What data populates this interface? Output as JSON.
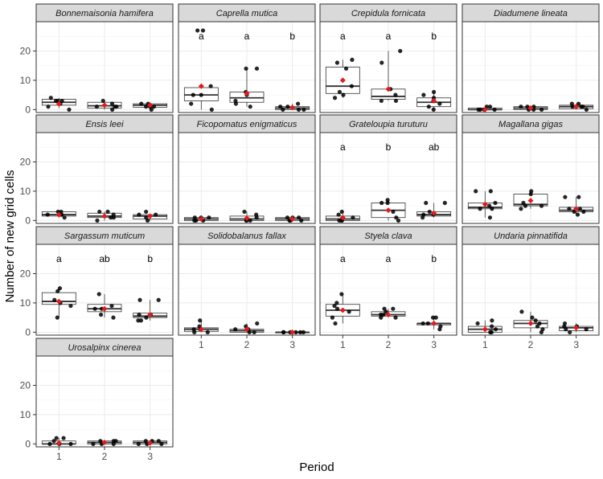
{
  "chart_data": {
    "type": "faceted-boxplot",
    "xlabel": "Period",
    "ylabel": "Number of new grid cells",
    "x_categories": [
      "1",
      "2",
      "3"
    ],
    "ylim": [
      -1,
      30
    ],
    "y_ticks": [
      0,
      10,
      20
    ],
    "colors": {
      "points": "#000000",
      "mean_marker": "#e41a1c",
      "strip_bg": "#d9d9d9",
      "box_fill": "#ffffff"
    },
    "panels": [
      {
        "species": "Bonnemaisonia hamifera",
        "letters": [],
        "groups": [
          {
            "period": "1",
            "box": [
              0.5,
              1.5,
              2.5,
              3.5,
              4
            ],
            "mean": 2,
            "points": [
              0,
              1,
              2,
              3,
              3,
              3,
              4
            ]
          },
          {
            "period": "2",
            "box": [
              0,
              0.5,
              1.3,
              2.5,
              3
            ],
            "mean": 1.5,
            "points": [
              0,
              1,
              1,
              2,
              3,
              1
            ]
          },
          {
            "period": "3",
            "box": [
              0,
              0.8,
              1.5,
              2,
              2
            ],
            "mean": 1.5,
            "points": [
              0,
              1,
              2,
              2,
              1,
              1
            ]
          }
        ]
      },
      {
        "species": "Caprella mutica",
        "letters": [
          "a",
          "a",
          "b"
        ],
        "groups": [
          {
            "period": "1",
            "box": [
              0,
              3,
              5,
              7.5,
              8
            ],
            "mean": 8,
            "points": [
              0,
              2,
              5,
              5,
              8,
              27,
              27
            ]
          },
          {
            "period": "2",
            "box": [
              1,
              2.5,
              4,
              6,
              14
            ],
            "mean": 5.5,
            "points": [
              1,
              2,
              3,
              5,
              6,
              14,
              14
            ]
          },
          {
            "period": "3",
            "box": [
              0,
              0,
              0.5,
              1,
              2
            ],
            "mean": 0.7,
            "points": [
              0,
              0,
              0,
              1,
              2,
              1
            ]
          }
        ]
      },
      {
        "species": "Crepidula fornicata",
        "letters": [
          "a",
          "a",
          "b"
        ],
        "groups": [
          {
            "period": "1",
            "box": [
              4,
              5.5,
              8,
              14.5,
              17
            ],
            "mean": 10,
            "points": [
              4,
              5,
              6,
              8,
              14,
              16,
              17
            ]
          },
          {
            "period": "2",
            "box": [
              3,
              3.5,
              4.5,
              7,
              20
            ],
            "mean": 7,
            "points": [
              3,
              3,
              5,
              7,
              16,
              20
            ]
          },
          {
            "period": "3",
            "box": [
              0,
              1,
              2.5,
              4,
              6
            ],
            "mean": 3,
            "points": [
              0,
              1,
              2,
              3,
              4,
              5,
              6
            ]
          }
        ]
      },
      {
        "species": "Diadumene lineata",
        "letters": [],
        "groups": [
          {
            "period": "1",
            "box": [
              0,
              0,
              0,
              0.5,
              1
            ],
            "mean": 0,
            "points": [
              0,
              0,
              0,
              1,
              1,
              0
            ]
          },
          {
            "period": "2",
            "box": [
              0,
              0,
              0.5,
              1,
              1
            ],
            "mean": 0.5,
            "points": [
              0,
              0,
              1,
              1,
              0,
              1
            ]
          },
          {
            "period": "3",
            "box": [
              0,
              0.3,
              1,
              1.5,
              2
            ],
            "mean": 1,
            "points": [
              0,
              1,
              1,
              2,
              2,
              1
            ]
          }
        ]
      },
      {
        "species": "Ensis leei",
        "letters": [],
        "groups": [
          {
            "period": "1",
            "box": [
              1,
              1.5,
              2,
              3,
              3
            ],
            "mean": 2,
            "points": [
              1,
              2,
              2,
              3,
              3,
              2
            ]
          },
          {
            "period": "2",
            "box": [
              0,
              1,
              1.5,
              2.5,
              3
            ],
            "mean": 1.5,
            "points": [
              0,
              1,
              2,
              3,
              3,
              1
            ]
          },
          {
            "period": "3",
            "box": [
              0,
              0.5,
              1.5,
              2,
              2
            ],
            "mean": 1.5,
            "points": [
              0,
              1,
              2,
              2,
              3
            ]
          }
        ]
      },
      {
        "species": "Ficopomatus enigmaticus",
        "letters": [],
        "groups": [
          {
            "period": "1",
            "box": [
              0,
              0,
              0.5,
              1,
              1
            ],
            "mean": 0.5,
            "points": [
              0,
              1,
              1,
              0,
              0,
              1
            ]
          },
          {
            "period": "2",
            "box": [
              0,
              0,
              0.5,
              1.5,
              3
            ],
            "mean": 0.8,
            "points": [
              0,
              0,
              1,
              2,
              3,
              0
            ]
          },
          {
            "period": "3",
            "box": [
              0,
              0,
              0.5,
              1,
              1
            ],
            "mean": 0.5,
            "points": [
              0,
              0,
              1,
              1,
              1,
              0
            ]
          }
        ]
      },
      {
        "species": "Grateloupia turuturu",
        "letters": [
          "a",
          "b",
          "ab"
        ],
        "groups": [
          {
            "period": "1",
            "box": [
              0,
              0,
              0.5,
              1.5,
              3
            ],
            "mean": 1,
            "points": [
              0,
              0,
              1,
              2,
              3,
              0
            ]
          },
          {
            "period": "2",
            "box": [
              0,
              1,
              3.5,
              6,
              7
            ],
            "mean": 3.5,
            "points": [
              0,
              1,
              3,
              6,
              6,
              7
            ]
          },
          {
            "period": "3",
            "box": [
              1,
              1.5,
              2,
              3,
              6
            ],
            "mean": 2.5,
            "points": [
              1,
              2,
              2,
              3,
              6,
              6
            ]
          }
        ]
      },
      {
        "species": "Magallana gigas",
        "letters": [],
        "groups": [
          {
            "period": "1",
            "box": [
              1,
              4,
              4.5,
              6,
              10
            ],
            "mean": 5.5,
            "points": [
              1,
              4,
              4,
              5,
              6,
              10,
              10
            ]
          },
          {
            "period": "2",
            "box": [
              4,
              5,
              5.5,
              9,
              10
            ],
            "mean": 6.8,
            "points": [
              4,
              5,
              5,
              6,
              9,
              10
            ]
          },
          {
            "period": "3",
            "box": [
              2,
              3,
              3.5,
              4.5,
              8
            ],
            "mean": 4,
            "points": [
              2,
              3,
              3,
              4,
              4,
              8,
              8
            ]
          }
        ]
      },
      {
        "species": "Sargassum muticum",
        "letters": [
          "a",
          "ab",
          "b"
        ],
        "groups": [
          {
            "period": "1",
            "box": [
              5,
              9.5,
              10.5,
              13.5,
              15
            ],
            "mean": 10.5,
            "points": [
              5,
              9,
              10,
              11,
              14,
              15
            ]
          },
          {
            "period": "2",
            "box": [
              5,
              7,
              8,
              9.5,
              13
            ],
            "mean": 8,
            "points": [
              5,
              6,
              8,
              8,
              9,
              13
            ]
          },
          {
            "period": "3",
            "box": [
              4,
              5,
              5.5,
              6.5,
              11
            ],
            "mean": 6,
            "points": [
              4,
              4,
              5,
              6,
              6,
              11,
              11
            ]
          }
        ]
      },
      {
        "species": "Solidobalanus fallax",
        "letters": [],
        "groups": [
          {
            "period": "1",
            "box": [
              0,
              0.3,
              1,
              1.5,
              4
            ],
            "mean": 1,
            "points": [
              0,
              0,
              1,
              1,
              2,
              4
            ]
          },
          {
            "period": "2",
            "box": [
              0,
              0,
              0.5,
              1,
              3
            ],
            "mean": 1,
            "points": [
              0,
              0,
              1,
              1,
              2,
              3
            ]
          },
          {
            "period": "3",
            "box": [
              0,
              0,
              0,
              0,
              0
            ],
            "mean": 0,
            "points": [
              0,
              0,
              0,
              0,
              0,
              0
            ]
          }
        ]
      },
      {
        "species": "Styela clava",
        "letters": [
          "a",
          "a",
          "b"
        ],
        "groups": [
          {
            "period": "1",
            "box": [
              3,
              5.5,
              7.5,
              9.5,
              13
            ],
            "mean": 7.5,
            "points": [
              3,
              5,
              7,
              8,
              9,
              10,
              13
            ]
          },
          {
            "period": "2",
            "box": [
              5,
              5.5,
              6,
              7,
              8
            ],
            "mean": 6,
            "points": [
              5,
              5,
              6,
              6,
              7,
              8,
              8
            ]
          },
          {
            "period": "3",
            "box": [
              1,
              2.5,
              3,
              3,
              5
            ],
            "mean": 3,
            "points": [
              1,
              2,
              3,
              3,
              5,
              5
            ]
          }
        ]
      },
      {
        "species": "Undaria pinnatifida",
        "letters": [],
        "groups": [
          {
            "period": "1",
            "box": [
              0,
              0,
              1,
              2,
              4
            ],
            "mean": 1,
            "points": [
              0,
              0,
              1,
              2,
              3,
              4
            ]
          },
          {
            "period": "2",
            "box": [
              0,
              1.5,
              3,
              4,
              7
            ],
            "mean": 3,
            "points": [
              0,
              1,
              2,
              3,
              4,
              5,
              7
            ]
          },
          {
            "period": "3",
            "box": [
              0,
              0.5,
              1.5,
              2,
              3
            ],
            "mean": 1.5,
            "points": [
              0,
              1,
              2,
              2,
              3,
              1
            ]
          }
        ]
      },
      {
        "species": "Urosalpinx cinerea",
        "letters": [],
        "groups": [
          {
            "period": "1",
            "box": [
              0,
              0,
              0,
              1,
              2
            ],
            "mean": 0.3,
            "points": [
              0,
              0,
              0,
              1,
              2,
              2
            ]
          },
          {
            "period": "2",
            "box": [
              0,
              0,
              0.5,
              1,
              1
            ],
            "mean": 0.5,
            "points": [
              0,
              0,
              1,
              1,
              1,
              0
            ]
          },
          {
            "period": "3",
            "box": [
              0,
              0,
              0.5,
              1,
              1
            ],
            "mean": 0.3,
            "points": [
              0,
              0,
              1,
              1,
              0,
              1
            ]
          }
        ]
      }
    ]
  }
}
